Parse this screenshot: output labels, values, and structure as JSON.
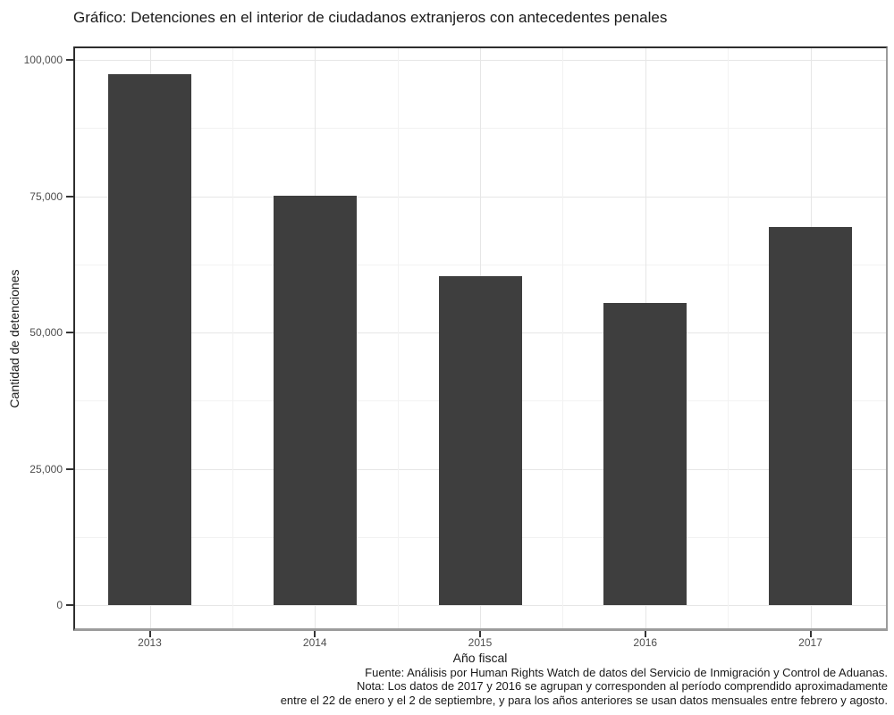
{
  "chart_data": {
    "type": "bar",
    "title": "Gráfico: Detenciones en el interior de ciudadanos extranjeros con antecedentes penales",
    "xlabel": "Año fiscal",
    "ylabel": "Cantidad de detenciones",
    "categories": [
      "2013",
      "2014",
      "2015",
      "2016",
      "2017"
    ],
    "values": [
      97300,
      75100,
      60300,
      55400,
      69300
    ],
    "ylim": [
      0,
      100000
    ],
    "yticks": [
      0,
      25000,
      50000,
      75000,
      100000
    ],
    "ytick_labels": [
      "0",
      "25,000",
      "50,000",
      "75,000",
      "100,000"
    ],
    "minor_yticks": [
      12500,
      37500,
      62500,
      87500
    ],
    "grid": "horizontal and vertical, major plus minor, light gray on white",
    "legend": "none",
    "caption_lines": [
      "Fuente: Análisis por Human Rights Watch de datos del Servicio de Inmigración y Control de Aduanas.",
      "Nota: Los datos de 2017 y 2016 se agrupan y corresponden al período comprendido aproximadamente",
      "entre el 22 de enero y el 2 de septiembre, y para los años anteriores se usan datos mensuales entre febrero y agosto."
    ]
  },
  "colors": {
    "bar": "#3E3E3E",
    "grid_major": "#E6E6E6",
    "grid_minor": "#F2F2F2",
    "tick_mark": "#333333",
    "tick_label": "#4D4D4D",
    "text": "#1A1A1A",
    "panel_border_dark": "#2E2E2E",
    "panel_border_gray": "#9C9C9C",
    "background": "#FFFFFF"
  }
}
